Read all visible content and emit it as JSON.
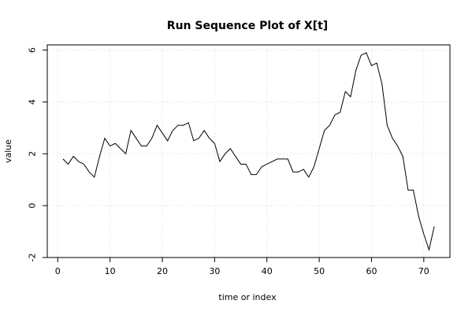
{
  "chart_data": {
    "type": "line",
    "title": "Run Sequence Plot of X[t]",
    "xlabel": "time or index",
    "ylabel": "value",
    "xlim": [
      -2,
      75
    ],
    "ylim": [
      -2,
      6.2
    ],
    "x_ticks": [
      0,
      10,
      20,
      30,
      40,
      50,
      60,
      70
    ],
    "y_ticks": [
      -2,
      0,
      2,
      4,
      6
    ],
    "grid": "dotted",
    "series": [
      {
        "values": [
          1.8,
          1.6,
          1.9,
          1.7,
          1.6,
          1.3,
          1.1,
          1.9,
          2.6,
          2.3,
          2.4,
          2.2,
          2.0,
          2.9,
          2.6,
          2.3,
          2.3,
          2.6,
          3.1,
          2.8,
          2.5,
          2.9,
          3.1,
          3.1,
          3.2,
          2.5,
          2.6,
          2.9,
          2.6,
          2.4,
          1.7,
          2.0,
          2.2,
          1.9,
          1.6,
          1.6,
          1.2,
          1.2,
          1.5,
          1.6,
          1.7,
          1.8,
          1.8,
          1.8,
          1.3,
          1.3,
          1.4,
          1.1,
          1.5,
          2.2,
          2.9,
          3.1,
          3.5,
          3.6,
          4.4,
          4.2,
          5.2,
          5.8,
          5.9,
          5.4,
          5.5,
          4.7,
          3.1,
          2.6,
          2.3,
          1.9,
          0.6,
          0.6,
          -0.4,
          -1.1,
          -1.7,
          -0.8
        ],
        "color": "#000000"
      }
    ]
  }
}
